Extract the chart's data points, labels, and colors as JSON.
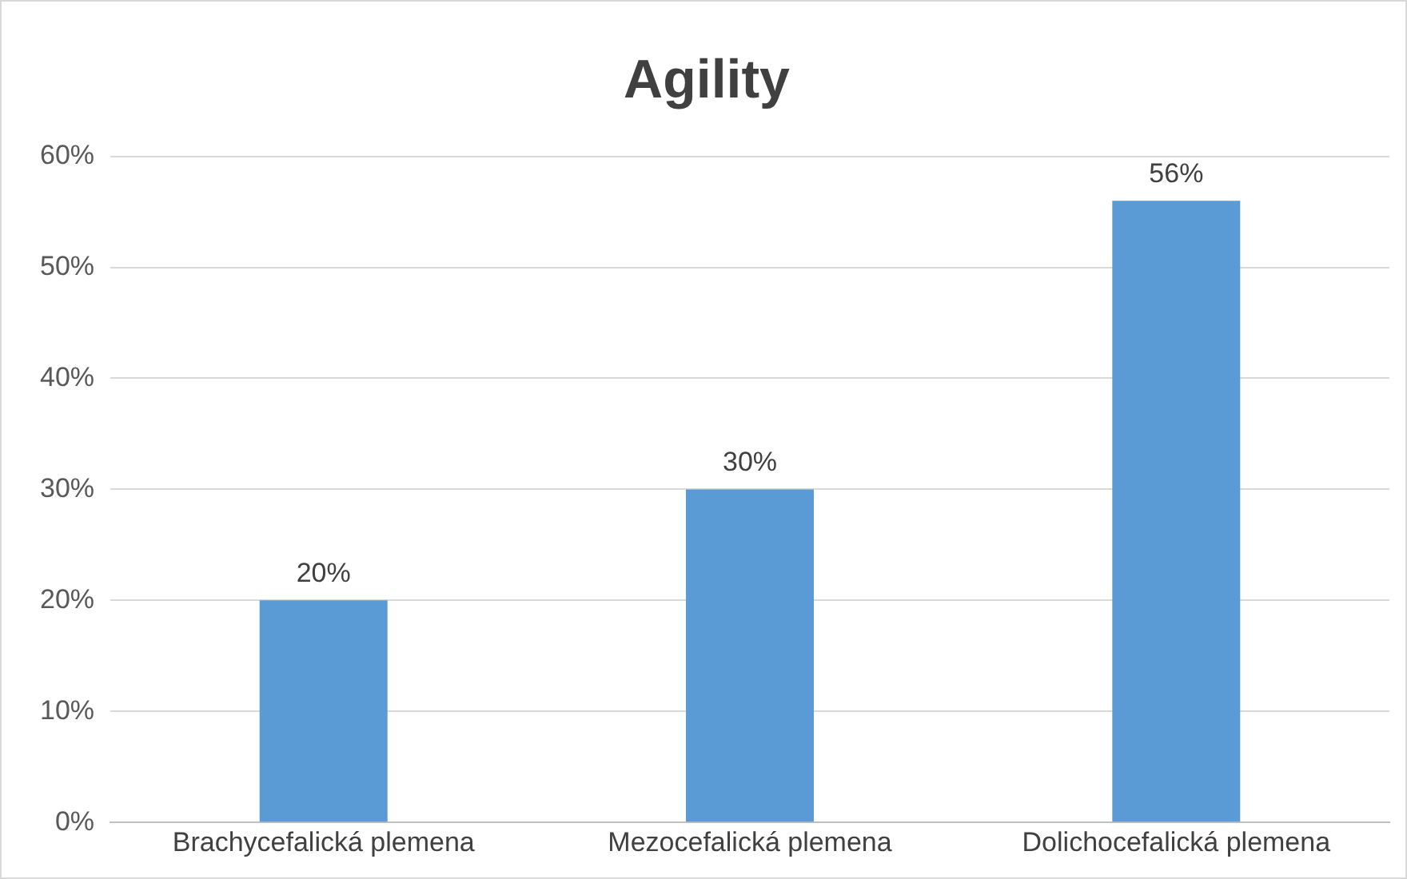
{
  "chart_data": {
    "type": "bar",
    "title": "Agility",
    "categories": [
      "Brachycefalická plemena",
      "Mezocefalická plemena",
      "Dolichocefalická plemena"
    ],
    "values": [
      20,
      30,
      56
    ],
    "value_labels": [
      "20%",
      "30%",
      "56%"
    ],
    "color": "#5b9bd5",
    "ylim": [
      0,
      60
    ],
    "yticks": [
      {
        "value": 0,
        "label": "0%"
      },
      {
        "value": 10,
        "label": "10%"
      },
      {
        "value": 20,
        "label": "20%"
      },
      {
        "value": 30,
        "label": "30%"
      },
      {
        "value": 40,
        "label": "40%"
      },
      {
        "value": 50,
        "label": "50%"
      },
      {
        "value": 60,
        "label": "60%"
      }
    ],
    "grid": "y"
  }
}
